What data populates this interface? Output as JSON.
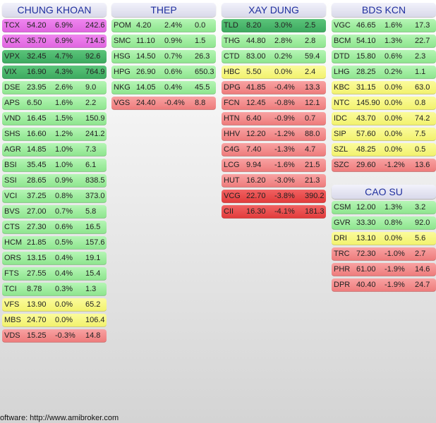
{
  "colors": {
    "ceiling": "#e066e0",
    "strong_up": "#3daa60",
    "up": "#8ee58e",
    "flat": "#f2f26e",
    "down": "#ee7c7c",
    "strong_down": "#e23c3c",
    "header_text": "#1f2f9e"
  },
  "panels": [
    {
      "title": "CHUNG KHOAN",
      "rows": [
        {
          "sym": "TCX",
          "price": "54.20",
          "pct": "6.9%",
          "vol": "242.6",
          "level": "ceil"
        },
        {
          "sym": "VCK",
          "price": "35.70",
          "pct": "6.9%",
          "vol": "714.5",
          "level": "ceil"
        },
        {
          "sym": "VPX",
          "price": "32.45",
          "pct": "4.7%",
          "vol": "92.6",
          "level": "up2"
        },
        {
          "sym": "VIX",
          "price": "16.90",
          "pct": "4.3%",
          "vol": "764.9",
          "level": "up2"
        },
        {
          "sym": "DSE",
          "price": "23.95",
          "pct": "2.6%",
          "vol": "9.0",
          "level": "up"
        },
        {
          "sym": "APS",
          "price": "6.50",
          "pct": "1.6%",
          "vol": "2.2",
          "level": "up"
        },
        {
          "sym": "VND",
          "price": "16.45",
          "pct": "1.5%",
          "vol": "150.9",
          "level": "up"
        },
        {
          "sym": "SHS",
          "price": "16.60",
          "pct": "1.2%",
          "vol": "241.2",
          "level": "up"
        },
        {
          "sym": "AGR",
          "price": "14.85",
          "pct": "1.0%",
          "vol": "7.3",
          "level": "up"
        },
        {
          "sym": "BSI",
          "price": "35.45",
          "pct": "1.0%",
          "vol": "6.1",
          "level": "up"
        },
        {
          "sym": "SSI",
          "price": "28.65",
          "pct": "0.9%",
          "vol": "838.5",
          "level": "up"
        },
        {
          "sym": "VCI",
          "price": "37.25",
          "pct": "0.8%",
          "vol": "373.0",
          "level": "up"
        },
        {
          "sym": "BVS",
          "price": "27.00",
          "pct": "0.7%",
          "vol": "5.8",
          "level": "up"
        },
        {
          "sym": "CTS",
          "price": "27.30",
          "pct": "0.6%",
          "vol": "16.5",
          "level": "up"
        },
        {
          "sym": "HCM",
          "price": "21.85",
          "pct": "0.5%",
          "vol": "157.6",
          "level": "up"
        },
        {
          "sym": "ORS",
          "price": "13.15",
          "pct": "0.4%",
          "vol": "19.1",
          "level": "up"
        },
        {
          "sym": "FTS",
          "price": "27.55",
          "pct": "0.4%",
          "vol": "15.4",
          "level": "up"
        },
        {
          "sym": "TCI",
          "price": "8.78",
          "pct": "0.3%",
          "vol": "1.3",
          "level": "up"
        },
        {
          "sym": "VFS",
          "price": "13.90",
          "pct": "0.0%",
          "vol": "65.2",
          "level": "flat"
        },
        {
          "sym": "MBS",
          "price": "24.70",
          "pct": "0.0%",
          "vol": "106.4",
          "level": "flat"
        },
        {
          "sym": "VDS",
          "price": "15.25",
          "pct": "-0.3%",
          "vol": "14.8",
          "level": "down"
        }
      ]
    },
    {
      "title": "THEP",
      "rows": [
        {
          "sym": "POM",
          "price": "4.20",
          "pct": "2.4%",
          "vol": "0.0",
          "level": "up"
        },
        {
          "sym": "SMC",
          "price": "11.10",
          "pct": "0.9%",
          "vol": "1.5",
          "level": "up"
        },
        {
          "sym": "HSG",
          "price": "14.50",
          "pct": "0.7%",
          "vol": "26.3",
          "level": "up"
        },
        {
          "sym": "HPG",
          "price": "26.90",
          "pct": "0.6%",
          "vol": "650.3",
          "level": "up"
        },
        {
          "sym": "NKG",
          "price": "14.05",
          "pct": "0.4%",
          "vol": "45.5",
          "level": "up"
        },
        {
          "sym": "VGS",
          "price": "24.40",
          "pct": "-0.4%",
          "vol": "8.8",
          "level": "down"
        }
      ]
    },
    {
      "title": "XAY DUNG",
      "rows": [
        {
          "sym": "TLD",
          "price": "8.20",
          "pct": "3.0%",
          "vol": "2.5",
          "level": "up2"
        },
        {
          "sym": "THG",
          "price": "44.80",
          "pct": "2.8%",
          "vol": "2.8",
          "level": "up"
        },
        {
          "sym": "CTD",
          "price": "83.00",
          "pct": "0.2%",
          "vol": "59.4",
          "level": "up"
        },
        {
          "sym": "HBC",
          "price": "5.50",
          "pct": "0.0%",
          "vol": "2.4",
          "level": "flat"
        },
        {
          "sym": "DPG",
          "price": "41.85",
          "pct": "-0.4%",
          "vol": "13.3",
          "level": "down"
        },
        {
          "sym": "FCN",
          "price": "12.45",
          "pct": "-0.8%",
          "vol": "12.1",
          "level": "down"
        },
        {
          "sym": "HTN",
          "price": "6.40",
          "pct": "-0.9%",
          "vol": "0.7",
          "level": "down"
        },
        {
          "sym": "HHV",
          "price": "12.20",
          "pct": "-1.2%",
          "vol": "88.0",
          "level": "down"
        },
        {
          "sym": "C4G",
          "price": "7.40",
          "pct": "-1.3%",
          "vol": "4.7",
          "level": "down"
        },
        {
          "sym": "LCG",
          "price": "9.94",
          "pct": "-1.6%",
          "vol": "21.5",
          "level": "down"
        },
        {
          "sym": "HUT",
          "price": "16.20",
          "pct": "-3.0%",
          "vol": "21.3",
          "level": "down"
        },
        {
          "sym": "VCG",
          "price": "22.70",
          "pct": "-3.8%",
          "vol": "390.2",
          "level": "down2"
        },
        {
          "sym": "CII",
          "price": "16.30",
          "pct": "-4.1%",
          "vol": "181.3",
          "level": "down2"
        }
      ]
    },
    {
      "title": "BDS KCN",
      "rows": [
        {
          "sym": "VGC",
          "price": "46.65",
          "pct": "1.6%",
          "vol": "17.3",
          "level": "up"
        },
        {
          "sym": "BCM",
          "price": "54.10",
          "pct": "1.3%",
          "vol": "22.7",
          "level": "up"
        },
        {
          "sym": "DTD",
          "price": "15.80",
          "pct": "0.6%",
          "vol": "2.3",
          "level": "up"
        },
        {
          "sym": "LHG",
          "price": "28.25",
          "pct": "0.2%",
          "vol": "1.1",
          "level": "up"
        },
        {
          "sym": "KBC",
          "price": "31.15",
          "pct": "0.0%",
          "vol": "63.0",
          "level": "flat"
        },
        {
          "sym": "NTC",
          "price": "145.90",
          "pct": "0.0%",
          "vol": "0.8",
          "level": "flat"
        },
        {
          "sym": "IDC",
          "price": "43.70",
          "pct": "0.0%",
          "vol": "74.2",
          "level": "flat"
        },
        {
          "sym": "SIP",
          "price": "57.60",
          "pct": "0.0%",
          "vol": "7.5",
          "level": "flat"
        },
        {
          "sym": "SZL",
          "price": "48.25",
          "pct": "0.0%",
          "vol": "0.5",
          "level": "flat"
        },
        {
          "sym": "SZC",
          "price": "29.60",
          "pct": "-1.2%",
          "vol": "13.6",
          "level": "down"
        }
      ]
    },
    {
      "title": "CAO SU",
      "rows": [
        {
          "sym": "CSM",
          "price": "12.00",
          "pct": "1.3%",
          "vol": "3.2",
          "level": "up"
        },
        {
          "sym": "GVR",
          "price": "33.30",
          "pct": "0.8%",
          "vol": "92.0",
          "level": "up"
        },
        {
          "sym": "DRI",
          "price": "13.10",
          "pct": "0.0%",
          "vol": "5.6",
          "level": "flat"
        },
        {
          "sym": "TRC",
          "price": "72.30",
          "pct": "-1.0%",
          "vol": "2.7",
          "level": "down"
        },
        {
          "sym": "PHR",
          "price": "61.00",
          "pct": "-1.9%",
          "vol": "14.6",
          "level": "down"
        },
        {
          "sym": "DPR",
          "price": "40.40",
          "pct": "-1.9%",
          "vol": "24.7",
          "level": "down"
        }
      ]
    }
  ],
  "footer": "oftware: http://www.amibroker.com"
}
